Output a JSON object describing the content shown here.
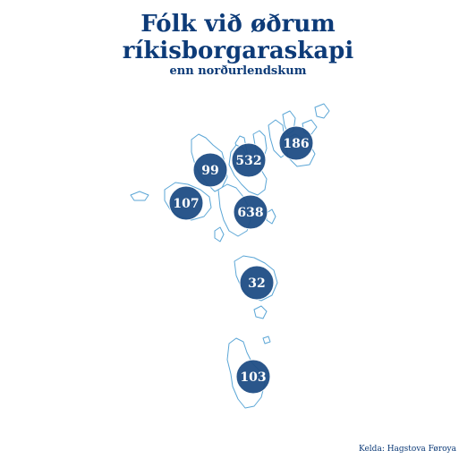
{
  "title": "Fólk við øðrum\nríkisborgaraskapi",
  "subtitle": "enn norðurlendskum",
  "source": "Kelda: Hagstova Føroya",
  "colors": {
    "title": "#0d3b78",
    "bubble_fill": "#1f4e85",
    "bubble_stroke": "#ffffff",
    "land_stroke": "#5ba6d6",
    "land_fill": "#ffffff"
  },
  "regions": [
    {
      "id": "nordoyggjar",
      "value": "186"
    },
    {
      "id": "eysturoy",
      "value": "532"
    },
    {
      "id": "nordurstreymoy",
      "value": "99"
    },
    {
      "id": "vagar",
      "value": "107"
    },
    {
      "id": "sudurstreymoy",
      "value": "638"
    },
    {
      "id": "sandoy",
      "value": "32"
    },
    {
      "id": "suduroy",
      "value": "103"
    }
  ]
}
